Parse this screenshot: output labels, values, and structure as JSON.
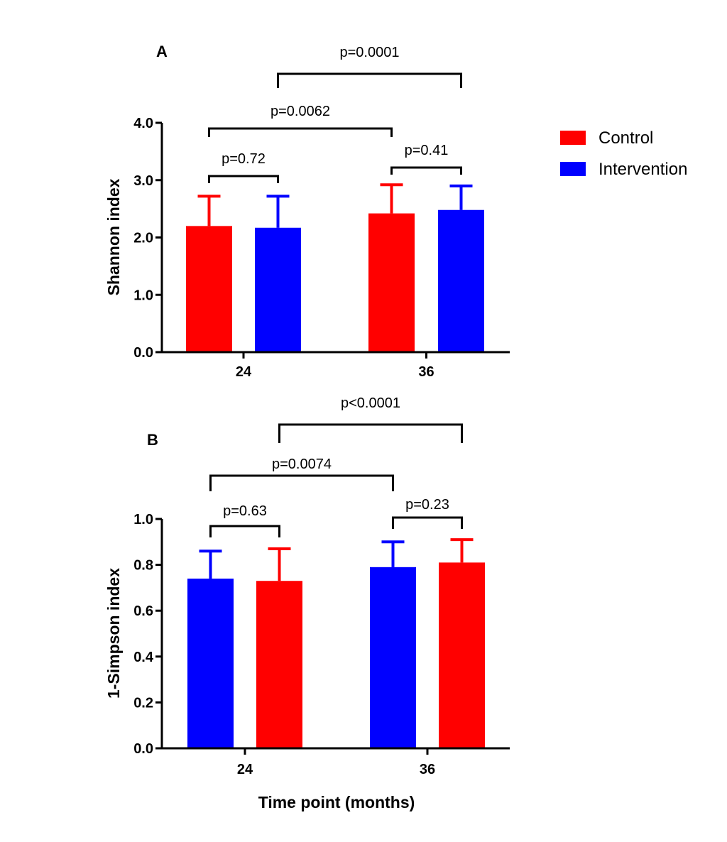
{
  "colors": {
    "Control": "#ff0000",
    "Intervention": "#0000ff",
    "axis": "#000000"
  },
  "legend": {
    "items": [
      {
        "label": "Control",
        "color": "#ff0000"
      },
      {
        "label": "Intervention",
        "color": "#0000ff"
      }
    ],
    "placement": "top-right"
  },
  "xlabel": "Time point (months)",
  "chart_data": [
    {
      "type": "bar",
      "panel": "A",
      "ylabel": "Shannon index",
      "categories": [
        "24",
        "36"
      ],
      "ylim": [
        0,
        4.0
      ],
      "yticks": [
        "0.0",
        "1.0",
        "2.0",
        "3.0",
        "4.0"
      ],
      "ytick_values": [
        0,
        1,
        2,
        3,
        4
      ],
      "bars": [
        {
          "category": "24",
          "series": "Control",
          "value": 2.2,
          "err": 0.52
        },
        {
          "category": "24",
          "series": "Intervention",
          "value": 2.17,
          "err": 0.55
        },
        {
          "category": "36",
          "series": "Control",
          "value": 2.42,
          "err": 0.5
        },
        {
          "category": "36",
          "series": "Intervention",
          "value": 2.48,
          "err": 0.42
        }
      ],
      "annotations": [
        {
          "text": "p=0.72",
          "from": 0,
          "to": 1
        },
        {
          "text": "p=0.41",
          "from": 2,
          "to": 3
        },
        {
          "text": "p=0.0062",
          "from": 0,
          "to": 2
        },
        {
          "text": "p=0.0001",
          "from": 1,
          "to": 3
        }
      ]
    },
    {
      "type": "bar",
      "panel": "B",
      "ylabel": "1-Simpson index",
      "categories": [
        "24",
        "36"
      ],
      "ylim": [
        0,
        1.0
      ],
      "yticks": [
        "0.0",
        "0.2",
        "0.4",
        "0.6",
        "0.8",
        "1.0"
      ],
      "ytick_values": [
        0,
        0.2,
        0.4,
        0.6,
        0.8,
        1.0
      ],
      "bars": [
        {
          "category": "24",
          "series": "Intervention",
          "value": 0.74,
          "err": 0.12
        },
        {
          "category": "24",
          "series": "Control",
          "value": 0.73,
          "err": 0.14
        },
        {
          "category": "36",
          "series": "Intervention",
          "value": 0.79,
          "err": 0.11
        },
        {
          "category": "36",
          "series": "Control",
          "value": 0.81,
          "err": 0.1
        }
      ],
      "annotations": [
        {
          "text": "p=0.63",
          "from": 0,
          "to": 1
        },
        {
          "text": "p=0.23",
          "from": 2,
          "to": 3
        },
        {
          "text": "p=0.0074",
          "from": 0,
          "to": 2
        },
        {
          "text": "p<0.0001",
          "from": 1,
          "to": 3
        }
      ]
    }
  ]
}
